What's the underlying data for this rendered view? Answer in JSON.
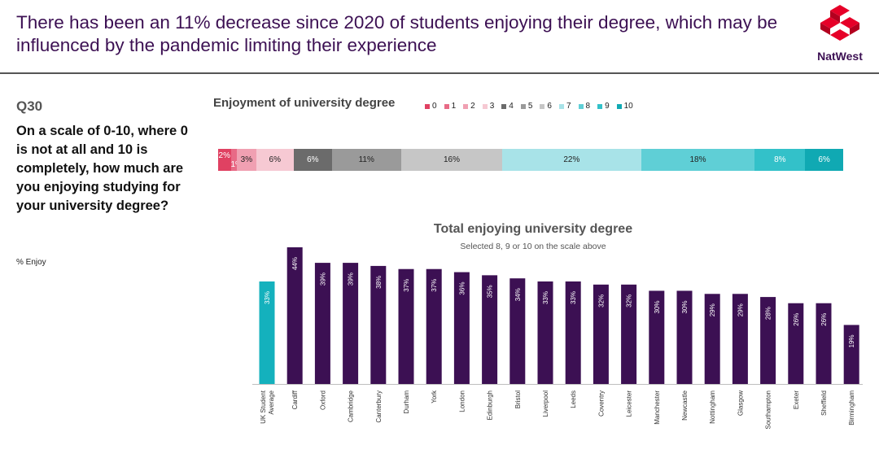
{
  "headline": "There has been an 11% decrease since 2020 of students enjoying their degree, which may be influenced by the pandemic limiting their experience",
  "brand": {
    "name": "NatWest",
    "color": "#e60028"
  },
  "question": {
    "number": "Q30",
    "text": "On a scale of 0-10, where 0 is not at all and 10 is completely, how much are you enjoying studying for your university degree?",
    "note": "% Enjoy"
  },
  "chart_data": [
    {
      "type": "bar",
      "orientation": "horizontal-stacked",
      "title": "Enjoyment of university degree",
      "categories": [
        "0",
        "1",
        "2",
        "3",
        "4",
        "5",
        "6",
        "7",
        "8",
        "9",
        "10"
      ],
      "values": [
        2,
        1,
        3,
        6,
        6,
        11,
        16,
        22,
        18,
        8,
        6
      ],
      "labels": [
        "2%",
        "1%",
        "3%",
        "6%",
        "6%",
        "11%",
        "16%",
        "22%",
        "18%",
        "8%",
        "6%"
      ],
      "colors": [
        "#e04162",
        "#e86a86",
        "#f0a0b2",
        "#f6c9d3",
        "#6b6b6b",
        "#9a9a9a",
        "#c6c6c6",
        "#a8e3e8",
        "#5fcfd6",
        "#33c1c9",
        "#10a9b3"
      ],
      "legend_position": "top"
    },
    {
      "type": "bar",
      "title": "Total enjoying university degree",
      "subtitle": "Selected 8, 9 or 10 on the scale above",
      "categories": [
        "UK Student Average",
        "Cardiff",
        "Oxford",
        "Cambridge",
        "Canterbury",
        "Durham",
        "York",
        "London",
        "Edinburgh",
        "Bristol",
        "Liverpool",
        "Leeds",
        "Coventry",
        "Leicester",
        "Manchester",
        "Newcastle",
        "Nottingham",
        "Glasgow",
        "Southampton",
        "Exeter",
        "Sheffield",
        "Birmingham"
      ],
      "values": [
        33,
        44,
        39,
        39,
        38,
        37,
        37,
        36,
        35,
        34,
        33,
        33,
        32,
        32,
        30,
        30,
        29,
        29,
        28,
        26,
        26,
        19
      ],
      "labels": [
        "33%",
        "44%",
        "39%",
        "39%",
        "38%",
        "37%",
        "37%",
        "36%",
        "35%",
        "34%",
        "33%",
        "33%",
        "32%",
        "32%",
        "30%",
        "30%",
        "29%",
        "29%",
        "28%",
        "26%",
        "26%",
        "19%"
      ],
      "colors": {
        "highlight": "#14b1bd",
        "bar": "#3c1053"
      },
      "ylim": [
        0,
        44
      ]
    }
  ]
}
